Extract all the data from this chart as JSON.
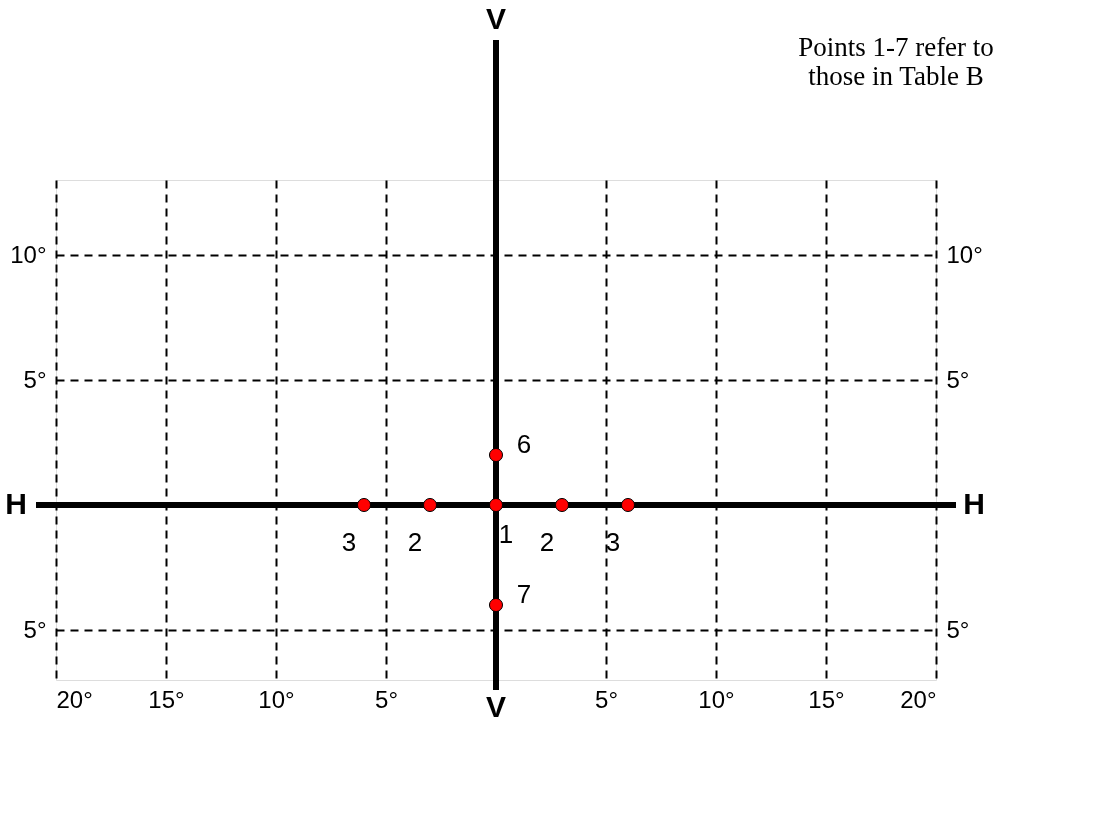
{
  "chart_data": {
    "type": "scatter",
    "x": [
      0,
      -3,
      3,
      -6,
      6,
      0,
      0
    ],
    "series": [
      {
        "color": "#ff0000",
        "values": [
          0,
          0,
          0,
          0,
          0,
          2,
          -4
        ]
      }
    ],
    "marker": "circle",
    "xlim": [
      -20,
      20
    ],
    "xticks": [
      {
        "value": -20,
        "label": "20°"
      },
      {
        "value": -15,
        "label": "15°"
      },
      {
        "value": -10,
        "label": "10°"
      },
      {
        "value": -5,
        "label": "5°"
      },
      {
        "value": 5,
        "label": "5°"
      },
      {
        "value": 10,
        "label": "10°"
      },
      {
        "value": 15,
        "label": "15°"
      },
      {
        "value": 20,
        "label": "20°"
      }
    ],
    "ylim": [
      -7,
      13
    ],
    "yticks": [
      {
        "value": -5,
        "label": "5°"
      },
      {
        "value": 5,
        "label": "5°"
      },
      {
        "value": 10,
        "label": "10°"
      }
    ],
    "y2lim": [
      -7,
      13
    ],
    "y2ticks": [
      {
        "value": -5,
        "label": "5°"
      },
      {
        "value": 5,
        "label": "5°"
      },
      {
        "value": 10,
        "label": "10°"
      }
    ],
    "grid": true,
    "ref_lines": [
      {
        "axis": "x",
        "value": 0,
        "label": "V",
        "color": "#000000"
      },
      {
        "axis": "y",
        "value": 0,
        "label": "H",
        "color": "#000000"
      }
    ],
    "annotations": [
      {
        "text": "1",
        "x": 0,
        "y": 0
      },
      {
        "text": "2",
        "x": -3,
        "y": 0
      },
      {
        "text": "2",
        "x": 3,
        "y": 0
      },
      {
        "text": "3",
        "x": -6,
        "y": 0
      },
      {
        "text": "3",
        "x": 6,
        "y": 0
      },
      {
        "text": "6",
        "x": 0,
        "y": 2
      },
      {
        "text": "7",
        "x": 0,
        "y": -4
      },
      "Points 1-7 refer to those in Table B"
    ]
  }
}
